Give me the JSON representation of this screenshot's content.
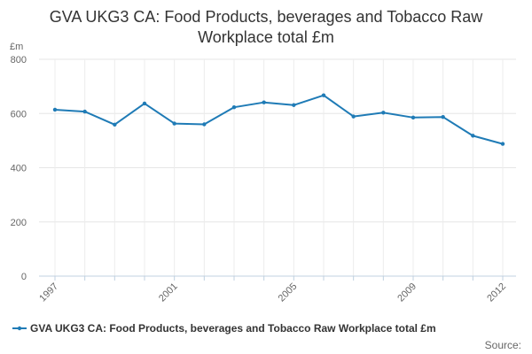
{
  "chart_data": {
    "type": "line",
    "title_lines": [
      "GVA UKG3 CA: Food Products, beverages and Tobacco Raw",
      "Workplace total £m"
    ],
    "ylabel": "£m",
    "xlabel": "",
    "ylim": [
      0,
      800
    ],
    "yticks": [
      "0",
      "200",
      "400",
      "600",
      "800"
    ],
    "x": [
      1997,
      1998,
      1999,
      2000,
      2001,
      2002,
      2003,
      2004,
      2005,
      2006,
      2007,
      2008,
      2009,
      2010,
      2011,
      2012
    ],
    "xtick_labels": [
      "1997",
      "2001",
      "2005",
      "2009",
      "2012"
    ],
    "series": [
      {
        "name": "GVA UKG3 CA: Food Products, beverages and Tobacco Raw Workplace total £m",
        "color": "#1f7bb6",
        "values": [
          614,
          607,
          559,
          637,
          563,
          560,
          623,
          641,
          631,
          667,
          589,
          603,
          585,
          587,
          518,
          488
        ]
      }
    ],
    "grid": true,
    "legend": "bottom-left",
    "source_label": "Source:"
  }
}
